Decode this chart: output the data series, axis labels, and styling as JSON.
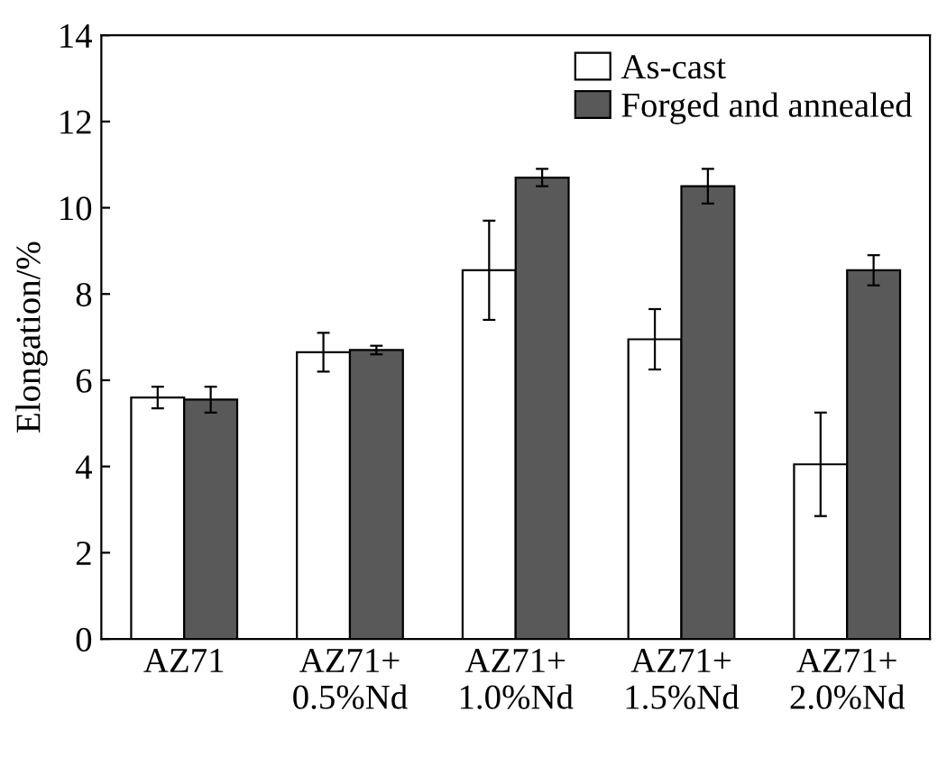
{
  "chart_data": {
    "type": "bar",
    "ylabel": "Elongation/%",
    "categories": [
      "AZ71",
      "AZ71+\n0.5%Nd",
      "AZ71+\n1.0%Nd",
      "AZ71+\n1.5%Nd",
      "AZ71+\n2.0%Nd"
    ],
    "series": [
      {
        "name": "As-cast",
        "color": "#ffffff",
        "values": [
          5.6,
          6.65,
          8.55,
          6.95,
          4.05
        ],
        "errors": [
          0.25,
          0.45,
          1.15,
          0.7,
          1.2
        ]
      },
      {
        "name": "Forged and annealed",
        "color": "#595959",
        "values": [
          5.55,
          6.7,
          10.7,
          10.5,
          8.55
        ],
        "errors": [
          0.3,
          0.1,
          0.2,
          0.4,
          0.35
        ]
      }
    ],
    "ylim": [
      0,
      14
    ],
    "yticks": [
      0,
      2,
      4,
      6,
      8,
      10,
      12,
      14
    ],
    "grid": false,
    "legend": "top right"
  }
}
